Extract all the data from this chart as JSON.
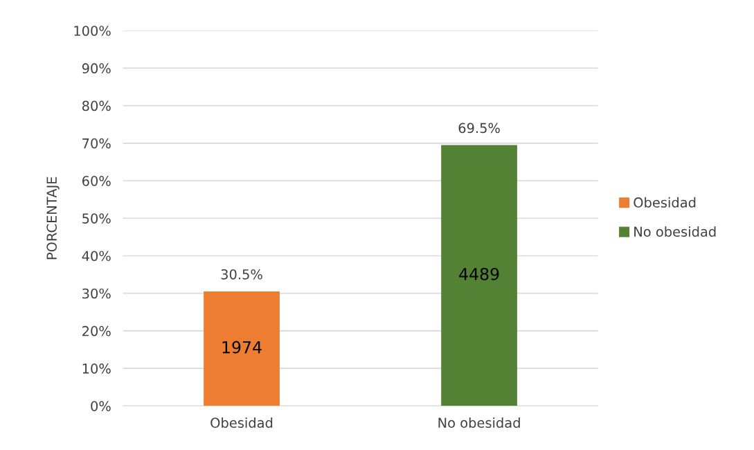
{
  "chart_data": {
    "type": "bar",
    "ylabel": "PORCENTAJE",
    "categories": [
      "Obesidad",
      "No obesidad"
    ],
    "series": [
      {
        "name": "Obesidad",
        "color": "#ed7d31",
        "values": [
          30.5,
          null
        ],
        "value_labels": [
          "30.5%",
          null
        ]
      },
      {
        "name": "No obesidad",
        "color": "#548235",
        "values": [
          null,
          69.5
        ],
        "value_labels": [
          null,
          "69.5%"
        ]
      }
    ],
    "annotations": [
      "1974",
      "4489"
    ],
    "ylim": [
      0,
      100
    ],
    "yticks": [
      {
        "value": 0,
        "label": "0%"
      },
      {
        "value": 10,
        "label": "10%"
      },
      {
        "value": 20,
        "label": "20%"
      },
      {
        "value": 30,
        "label": "30%"
      },
      {
        "value": 40,
        "label": "40%"
      },
      {
        "value": 50,
        "label": "50%"
      },
      {
        "value": 60,
        "label": "60%"
      },
      {
        "value": 70,
        "label": "70%"
      },
      {
        "value": 80,
        "label": "80%"
      },
      {
        "value": 90,
        "label": "90%"
      },
      {
        "value": 100,
        "label": "100%"
      }
    ],
    "grid": "y",
    "legend": "right"
  }
}
